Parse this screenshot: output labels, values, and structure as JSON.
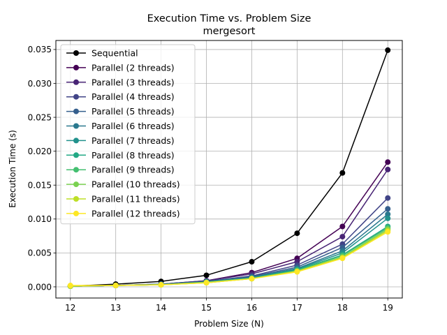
{
  "chart_data": {
    "type": "line",
    "title": "Execution Time vs. Problem Size",
    "subtitle": "mergesort",
    "xlabel": "Problem Size (N)",
    "ylabel": "Execution Time (s)",
    "x": [
      12,
      13,
      14,
      15,
      16,
      17,
      18,
      19
    ],
    "xlim": [
      11.68,
      19.32
    ],
    "ylim": [
      -0.00165,
      0.03633
    ],
    "xticks": [
      "12",
      "13",
      "14",
      "15",
      "16",
      "17",
      "18",
      "19"
    ],
    "yticks": [
      0.0,
      0.005,
      0.01,
      0.015,
      0.02,
      0.025,
      0.03,
      0.035
    ],
    "ytick_labels": [
      "0.000",
      "0.005",
      "0.010",
      "0.015",
      "0.020",
      "0.025",
      "0.030",
      "0.035"
    ],
    "grid": true,
    "legend_position": "upper-left",
    "series": [
      {
        "name": "Sequential",
        "color": "#000000",
        "values": [
          0.0001,
          0.0004,
          0.0008,
          0.0017,
          0.0037,
          0.0079,
          0.0168,
          0.0349
        ]
      },
      {
        "name": "Parallel (2 threads)",
        "color": "#440154",
        "values": [
          0.0001,
          0.0002,
          0.0004,
          0.0009,
          0.0021,
          0.0042,
          0.0089,
          0.0184
        ]
      },
      {
        "name": "Parallel (3 threads)",
        "color": "#482475",
        "values": [
          0.0001,
          0.0002,
          0.0004,
          0.0009,
          0.0019,
          0.0037,
          0.0074,
          0.0173
        ]
      },
      {
        "name": "Parallel (4 threads)",
        "color": "#414487",
        "values": [
          0.0001,
          0.0002,
          0.0004,
          0.0008,
          0.0016,
          0.0032,
          0.0063,
          0.0131
        ]
      },
      {
        "name": "Parallel (5 threads)",
        "color": "#355f8d",
        "values": [
          0.0001,
          0.0002,
          0.0004,
          0.0008,
          0.0015,
          0.0029,
          0.0058,
          0.0115
        ]
      },
      {
        "name": "Parallel (6 threads)",
        "color": "#2a788e",
        "values": [
          0.0001,
          0.0002,
          0.0004,
          0.0007,
          0.0014,
          0.0027,
          0.0053,
          0.0107
        ]
      },
      {
        "name": "Parallel (7 threads)",
        "color": "#21918c",
        "values": [
          0.0001,
          0.0002,
          0.0003,
          0.0007,
          0.0013,
          0.0026,
          0.005,
          0.0101
        ]
      },
      {
        "name": "Parallel (8 threads)",
        "color": "#22a884",
        "values": [
          0.0001,
          0.0002,
          0.0003,
          0.0007,
          0.0013,
          0.0025,
          0.0047,
          0.0089
        ]
      },
      {
        "name": "Parallel (9 threads)",
        "color": "#44bf70",
        "values": [
          0.0001,
          0.0002,
          0.0003,
          0.0007,
          0.0012,
          0.0024,
          0.0046,
          0.0087
        ]
      },
      {
        "name": "Parallel (10 threads)",
        "color": "#7ad151",
        "values": [
          0.0001,
          0.0002,
          0.0003,
          0.0006,
          0.0012,
          0.0023,
          0.0044,
          0.0085
        ]
      },
      {
        "name": "Parallel (11 threads)",
        "color": "#bddf26",
        "values": [
          0.0001,
          0.0002,
          0.0003,
          0.0006,
          0.0012,
          0.0023,
          0.0043,
          0.0083
        ]
      },
      {
        "name": "Parallel (12 threads)",
        "color": "#fde725",
        "values": [
          0.0002,
          0.0002,
          0.0003,
          0.0006,
          0.0012,
          0.0022,
          0.0042,
          0.0081
        ]
      }
    ]
  }
}
